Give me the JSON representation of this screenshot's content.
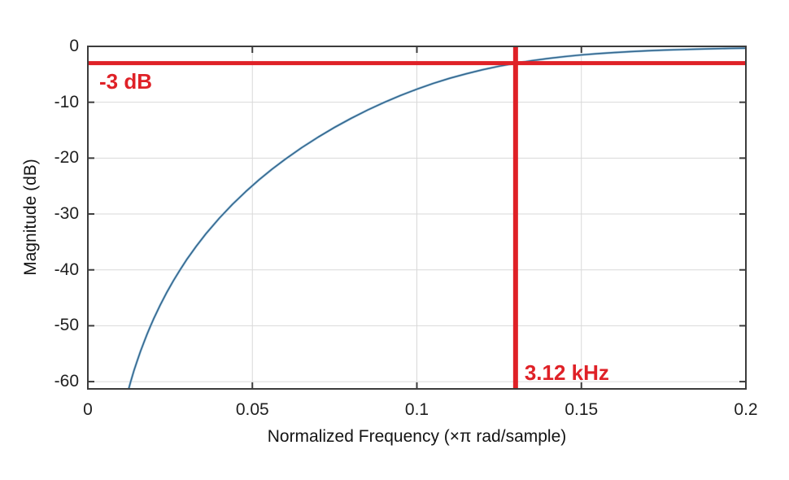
{
  "colors": {
    "annotation_red": "#df2127",
    "curve_blue": "#34688f",
    "curve_halo": "#aecde2",
    "grid_gray": "#d9d9d9",
    "axis_dark": "#3c3c3c",
    "tick_text": "#1f1f1f"
  },
  "chart_data": {
    "type": "line",
    "title": "",
    "xlabel": "Normalized Frequency (×π rad/sample)",
    "ylabel": "Magnitude (dB)",
    "xlim": [
      0,
      0.2
    ],
    "ylim": [
      -61.3,
      0
    ],
    "grid": true,
    "legend": "none",
    "x_ticks": [
      {
        "value": 0,
        "label": "0"
      },
      {
        "value": 0.05,
        "label": "0.05"
      },
      {
        "value": 0.1,
        "label": "0.1"
      },
      {
        "value": 0.15,
        "label": "0.15"
      },
      {
        "value": 0.2,
        "label": "0.2"
      }
    ],
    "y_ticks": [
      {
        "value": 0,
        "label": "0"
      },
      {
        "value": -10,
        "label": "-10"
      },
      {
        "value": -20,
        "label": "-20"
      },
      {
        "value": -30,
        "label": "-30"
      },
      {
        "value": -40,
        "label": "-40"
      },
      {
        "value": -50,
        "label": "-50"
      },
      {
        "value": -60,
        "label": "-60"
      }
    ],
    "series": [
      {
        "name": "highpass-magnitude-response",
        "color": "#34688f",
        "points": [
          [
            0.0124,
            -61.3
          ],
          [
            0.013,
            -60.04
          ],
          [
            0.014,
            -58.07
          ],
          [
            0.015,
            -56.27
          ],
          [
            0.016,
            -54.59
          ],
          [
            0.017,
            -53.01
          ],
          [
            0.018,
            -51.52
          ],
          [
            0.019,
            -50.11
          ],
          [
            0.02,
            -48.77
          ],
          [
            0.022,
            -46.29
          ],
          [
            0.024,
            -44.02
          ],
          [
            0.026,
            -41.94
          ],
          [
            0.028,
            -40.01
          ],
          [
            0.03,
            -38.21
          ],
          [
            0.033,
            -35.73
          ],
          [
            0.036,
            -33.46
          ],
          [
            0.04,
            -30.73
          ],
          [
            0.044,
            -28.24
          ],
          [
            0.048,
            -25.97
          ],
          [
            0.052,
            -23.89
          ],
          [
            0.056,
            -21.97
          ],
          [
            0.06,
            -20.19
          ],
          [
            0.065,
            -18.13
          ],
          [
            0.07,
            -16.23
          ],
          [
            0.075,
            -14.49
          ],
          [
            0.08,
            -12.88
          ],
          [
            0.085,
            -11.4
          ],
          [
            0.09,
            -10.04
          ],
          [
            0.095,
            -8.79
          ],
          [
            0.1,
            -7.66
          ],
          [
            0.105,
            -6.63
          ],
          [
            0.11,
            -5.71
          ],
          [
            0.115,
            -4.9
          ],
          [
            0.12,
            -4.18
          ],
          [
            0.125,
            -3.55
          ],
          [
            0.13,
            -3.01
          ],
          [
            0.135,
            -2.55
          ],
          [
            0.14,
            -2.15
          ],
          [
            0.145,
            -1.82
          ],
          [
            0.15,
            -1.53
          ],
          [
            0.155,
            -1.3
          ],
          [
            0.16,
            -1.1
          ],
          [
            0.165,
            -0.93
          ],
          [
            0.17,
            -0.79
          ],
          [
            0.175,
            -0.67
          ],
          [
            0.18,
            -0.58
          ],
          [
            0.185,
            -0.49
          ],
          [
            0.19,
            -0.42
          ],
          [
            0.195,
            -0.37
          ],
          [
            0.2,
            -0.32
          ]
        ]
      }
    ],
    "annotations": {
      "hline": {
        "y": -3,
        "label": "-3 dB"
      },
      "vline": {
        "x": 0.13,
        "label": "3.12 kHz"
      }
    }
  }
}
